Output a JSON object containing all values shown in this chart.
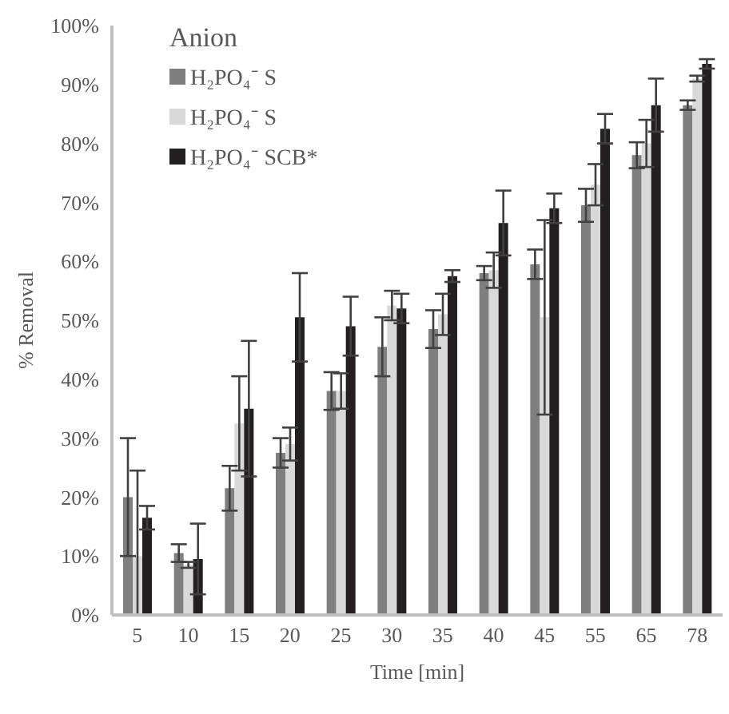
{
  "chart_data": {
    "type": "bar",
    "xlabel": "Time [min]",
    "ylabel": "% Removal",
    "legend_title": "Anion",
    "legend": "top left",
    "grid": false,
    "categories": [
      "5",
      "10",
      "15",
      "20",
      "25",
      "30",
      "35",
      "40",
      "45",
      "55",
      "65",
      "78"
    ],
    "ylim": [
      0,
      100
    ],
    "yticks": [
      {
        "value": 0,
        "label": "0%"
      },
      {
        "value": 10,
        "label": "10%"
      },
      {
        "value": 20,
        "label": "20%"
      },
      {
        "value": 30,
        "label": "30%"
      },
      {
        "value": 40,
        "label": "40%"
      },
      {
        "value": 50,
        "label": "50%"
      },
      {
        "value": 60,
        "label": "60%"
      },
      {
        "value": 70,
        "label": "70%"
      },
      {
        "value": 80,
        "label": "80%"
      },
      {
        "value": 90,
        "label": "90%"
      },
      {
        "value": 100,
        "label": "100%"
      }
    ],
    "series": [
      {
        "name": "H₂PO₄⁻ S",
        "color": "#7f7f7f",
        "values": [
          20,
          10.5,
          21.5,
          27.5,
          38,
          45.5,
          48.5,
          58,
          59.5,
          69.5,
          78,
          86.5
        ],
        "errors": [
          10,
          1.5,
          3.8,
          2.5,
          3.2,
          5,
          3.2,
          1.2,
          2.5,
          2.8,
          2.2,
          0.8
        ]
      },
      {
        "name": "H₂PO₄⁻ S",
        "color": "#d9d9d9",
        "values": [
          10,
          8.5,
          32.5,
          29,
          38,
          52.5,
          51,
          58.5,
          50.5,
          73,
          80,
          91
        ],
        "errors": [
          [
            0,
            24.5
          ],
          0.5,
          8,
          2.8,
          3,
          2.5,
          3.5,
          3,
          16.5,
          3.5,
          4,
          0.5
        ]
      },
      {
        "name": "H₂PO₄⁻ SCB*",
        "color": "#231f20",
        "values": [
          16.5,
          9.5,
          35,
          50.5,
          49,
          52,
          57.5,
          66.5,
          69,
          82.5,
          86.5,
          93.5
        ],
        "errors": [
          2,
          6,
          11.5,
          7.5,
          5,
          2.5,
          1,
          5.5,
          2.5,
          2.5,
          4.5,
          0.8
        ]
      }
    ]
  }
}
